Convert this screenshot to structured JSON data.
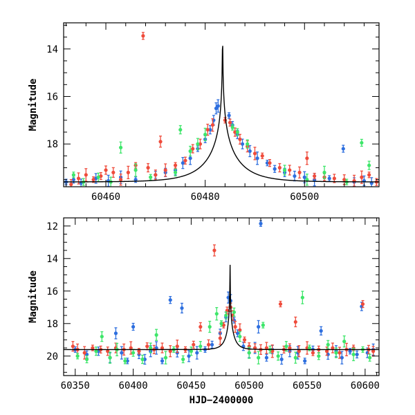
{
  "chart_data": [
    {
      "type": "scatter",
      "panel": "top",
      "xlabel": "",
      "ylabel": "Magnitude",
      "xlim": [
        60451.5,
        60515
      ],
      "ylim": [
        19.8,
        12.9
      ],
      "y_inverted": true,
      "xticks": [
        60460,
        60480,
        60500
      ],
      "yticks": [
        14,
        16,
        18
      ],
      "grid": false,
      "model_curve": {
        "peak_x": 60483.5,
        "peak_mag": 12.95,
        "baseline_mag": 19.6,
        "color": "#000000"
      },
      "series": [
        {
          "color": "#2e6fdf",
          "points": [
            [
              60452,
              19.6
            ],
            [
              60453.5,
              19.5
            ],
            [
              60455,
              19.65
            ],
            [
              60458,
              19.45
            ],
            [
              60460.5,
              19.55
            ],
            [
              60463,
              19.4
            ],
            [
              60466,
              19.5
            ],
            [
              60470,
              19.3
            ],
            [
              60472,
              19.2
            ],
            [
              60474,
              19.1
            ],
            [
              60475.5,
              18.8
            ],
            [
              60477,
              18.6
            ],
            [
              60478.5,
              18.2
            ],
            [
              60480,
              17.8
            ],
            [
              60481,
              17.4
            ],
            [
              60481.7,
              17.0
            ],
            [
              60482.2,
              16.5
            ],
            [
              60482.6,
              16.4
            ],
            [
              60484.8,
              16.8
            ],
            [
              60485.5,
              17.2
            ],
            [
              60486.5,
              17.6
            ],
            [
              60487.5,
              18.0
            ],
            [
              60489,
              18.3
            ],
            [
              60490.5,
              18.6
            ],
            [
              60492.5,
              18.8
            ],
            [
              60494,
              19.05
            ],
            [
              60496,
              19.2
            ],
            [
              60498,
              19.35
            ],
            [
              60500,
              19.4
            ],
            [
              60502,
              19.5
            ],
            [
              60505,
              19.45
            ],
            [
              60507.8,
              18.2
            ],
            [
              60510,
              19.6
            ],
            [
              60512,
              19.55
            ],
            [
              60513.5,
              19.65
            ]
          ]
        },
        {
          "color": "#ef4b3b",
          "points": [
            [
              60453,
              19.7
            ],
            [
              60454.5,
              19.45
            ],
            [
              60456,
              19.3
            ],
            [
              60457.5,
              19.5
            ],
            [
              60459,
              19.35
            ],
            [
              60460,
              19.1
            ],
            [
              60461.5,
              19.2
            ],
            [
              60463,
              19.5
            ],
            [
              60464.5,
              19.2
            ],
            [
              60466,
              18.9
            ],
            [
              60467.5,
              13.45
            ],
            [
              60468.5,
              19.0
            ],
            [
              60470,
              19.3
            ],
            [
              60471,
              17.9
            ],
            [
              60472,
              19.1
            ],
            [
              60474,
              18.9
            ],
            [
              60476,
              18.7
            ],
            [
              60477.5,
              18.2
            ],
            [
              60479,
              18.0
            ],
            [
              60480.5,
              17.4
            ],
            [
              60481.5,
              17.2
            ],
            [
              60484,
              17.0
            ],
            [
              60485,
              17.1
            ],
            [
              60486,
              17.5
            ],
            [
              60487,
              17.8
            ],
            [
              60488.5,
              18.1
            ],
            [
              60490,
              18.4
            ],
            [
              60491.5,
              18.5
            ],
            [
              60493,
              18.8
            ],
            [
              60495,
              19.0
            ],
            [
              60497,
              19.1
            ],
            [
              60499,
              19.2
            ],
            [
              60500.5,
              18.6
            ],
            [
              60502,
              19.35
            ],
            [
              60504,
              19.4
            ],
            [
              60506,
              19.45
            ],
            [
              60508,
              19.5
            ],
            [
              60510,
              19.55
            ],
            [
              60511.5,
              19.4
            ],
            [
              60513,
              19.3
            ],
            [
              60514.5,
              19.6
            ]
          ]
        },
        {
          "color": "#3ee66a",
          "points": [
            [
              60453.5,
              19.3
            ],
            [
              60455.5,
              19.6
            ],
            [
              60458.5,
              19.4
            ],
            [
              60461,
              19.6
            ],
            [
              60463,
              18.15
            ],
            [
              60466,
              19.1
            ],
            [
              60469,
              19.4
            ],
            [
              60474,
              19.2
            ],
            [
              60475,
              17.4
            ],
            [
              60477,
              18.3
            ],
            [
              60478.5,
              18.0
            ],
            [
              60480,
              17.6
            ],
            [
              60485.5,
              17.3
            ],
            [
              60486.5,
              17.5
            ],
            [
              60488.5,
              18.0
            ],
            [
              60496,
              19.1
            ],
            [
              60500.5,
              19.5
            ],
            [
              60504,
              19.2
            ],
            [
              60508.5,
              19.6
            ],
            [
              60511.5,
              17.95
            ],
            [
              60513,
              18.9
            ]
          ]
        }
      ]
    },
    {
      "type": "scatter",
      "panel": "bottom",
      "xlabel": "HJD−2400000",
      "ylabel": "Magnitude",
      "xlim": [
        60340,
        60612
      ],
      "ylim": [
        21.2,
        11.5
      ],
      "y_inverted": true,
      "xticks": [
        60350,
        60400,
        60450,
        60500,
        60550,
        60600
      ],
      "yticks": [
        12,
        14,
        16,
        18,
        20
      ],
      "grid": false,
      "model_curve": {
        "peak_x": 60483.5,
        "peak_mag": 12.95,
        "baseline_mag": 19.6,
        "color": "#000000"
      },
      "series": [
        {
          "color": "#2e6fdf",
          "points": [
            [
              60350,
              19.6
            ],
            [
              60360,
              19.9
            ],
            [
              60370,
              19.7
            ],
            [
              60380,
              20.1
            ],
            [
              60385,
              18.6
            ],
            [
              60390,
              19.8
            ],
            [
              60395,
              20.3
            ],
            [
              60400,
              18.2
            ],
            [
              60405,
              19.9
            ],
            [
              60410,
              20.2
            ],
            [
              60415,
              19.7
            ],
            [
              60420,
              19.5
            ],
            [
              60425,
              20.3
            ],
            [
              60432,
              16.55
            ],
            [
              60438,
              19.8
            ],
            [
              60442,
              17.05
            ],
            [
              60448,
              20.0
            ],
            [
              60455,
              19.8
            ],
            [
              60462,
              19.6
            ],
            [
              60468,
              19.3
            ],
            [
              60475,
              18.6
            ],
            [
              60480,
              17.6
            ],
            [
              60482,
              16.4
            ],
            [
              60484,
              16.6
            ],
            [
              60487,
              17.8
            ],
            [
              60490,
              18.6
            ],
            [
              60495,
              19.4
            ],
            [
              60500,
              19.8
            ],
            [
              60505,
              19.5
            ],
            [
              60508,
              18.2
            ],
            [
              60510,
              11.85
            ],
            [
              60515,
              20.1
            ],
            [
              60520,
              19.6
            ],
            [
              60528,
              20.2
            ],
            [
              60535,
              19.7
            ],
            [
              60542,
              19.8
            ],
            [
              60548,
              20.3
            ],
            [
              60555,
              19.6
            ],
            [
              60562,
              18.45
            ],
            [
              60568,
              19.9
            ],
            [
              60575,
              19.7
            ],
            [
              60580,
              20.1
            ],
            [
              60587,
              19.7
            ],
            [
              60593,
              19.9
            ],
            [
              60597,
              16.95
            ],
            [
              60602,
              19.8
            ],
            [
              60607,
              19.6
            ]
          ]
        },
        {
          "color": "#ef4b3b",
          "points": [
            [
              60348,
              19.4
            ],
            [
              60352,
              19.6
            ],
            [
              60358,
              19.8
            ],
            [
              60365,
              19.5
            ],
            [
              60372,
              19.6
            ],
            [
              60378,
              19.7
            ],
            [
              60385,
              19.5
            ],
            [
              60392,
              19.6
            ],
            [
              60398,
              19.5
            ],
            [
              60405,
              19.7
            ],
            [
              60412,
              19.4
            ],
            [
              60418,
              19.6
            ],
            [
              60425,
              19.5
            ],
            [
              60432,
              19.7
            ],
            [
              60438,
              19.4
            ],
            [
              60445,
              19.6
            ],
            [
              60452,
              19.3
            ],
            [
              60458,
              18.2
            ],
            [
              60465,
              19.3
            ],
            [
              60470,
              13.5
            ],
            [
              60475,
              18.9
            ],
            [
              60478,
              18.1
            ],
            [
              60481,
              17.2
            ],
            [
              60484,
              17.0
            ],
            [
              60486,
              17.5
            ],
            [
              60488,
              18.2
            ],
            [
              60492,
              18.4
            ],
            [
              60496,
              19.0
            ],
            [
              60500,
              19.4
            ],
            [
              60505,
              19.5
            ],
            [
              60510,
              19.6
            ],
            [
              60515,
              19.5
            ],
            [
              60520,
              19.7
            ],
            [
              60527,
              16.8
            ],
            [
              60530,
              19.6
            ],
            [
              60535,
              19.5
            ],
            [
              60540,
              17.9
            ],
            [
              60543,
              19.7
            ],
            [
              60550,
              19.5
            ],
            [
              60555,
              19.8
            ],
            [
              60560,
              19.6
            ],
            [
              60567,
              19.7
            ],
            [
              60572,
              19.5
            ],
            [
              60578,
              19.8
            ],
            [
              60584,
              19.6
            ],
            [
              60590,
              19.5
            ],
            [
              60598,
              16.8
            ],
            [
              60603,
              19.6
            ],
            [
              60607,
              19.7
            ]
          ]
        },
        {
          "color": "#3ee66a",
          "points": [
            [
              60352,
              20.0
            ],
            [
              60360,
              20.2
            ],
            [
              60368,
              19.7
            ],
            [
              60373,
              18.8
            ],
            [
              60380,
              20.1
            ],
            [
              60386,
              19.6
            ],
            [
              60393,
              20.3
            ],
            [
              60400,
              19.8
            ],
            [
              60408,
              20.2
            ],
            [
              60415,
              19.5
            ],
            [
              60420,
              18.7
            ],
            [
              60428,
              20.1
            ],
            [
              60435,
              19.6
            ],
            [
              60443,
              20.2
            ],
            [
              60450,
              19.7
            ],
            [
              60458,
              19.4
            ],
            [
              60466,
              18.2
            ],
            [
              60472,
              17.4
            ],
            [
              60476,
              18.0
            ],
            [
              60480,
              17.5
            ],
            [
              60487,
              17.3
            ],
            [
              60492,
              18.8
            ],
            [
              60500,
              19.8
            ],
            [
              60508,
              20.1
            ],
            [
              60512,
              18.1
            ],
            [
              60518,
              19.6
            ],
            [
              60525,
              20.0
            ],
            [
              60532,
              19.4
            ],
            [
              60540,
              20.1
            ],
            [
              60546,
              16.4
            ],
            [
              60552,
              19.5
            ],
            [
              60560,
              20.0
            ],
            [
              60568,
              19.3
            ],
            [
              60575,
              19.8
            ],
            [
              60582,
              19.1
            ],
            [
              60590,
              19.9
            ],
            [
              60598,
              19.6
            ],
            [
              60604,
              20.1
            ]
          ]
        }
      ]
    }
  ]
}
